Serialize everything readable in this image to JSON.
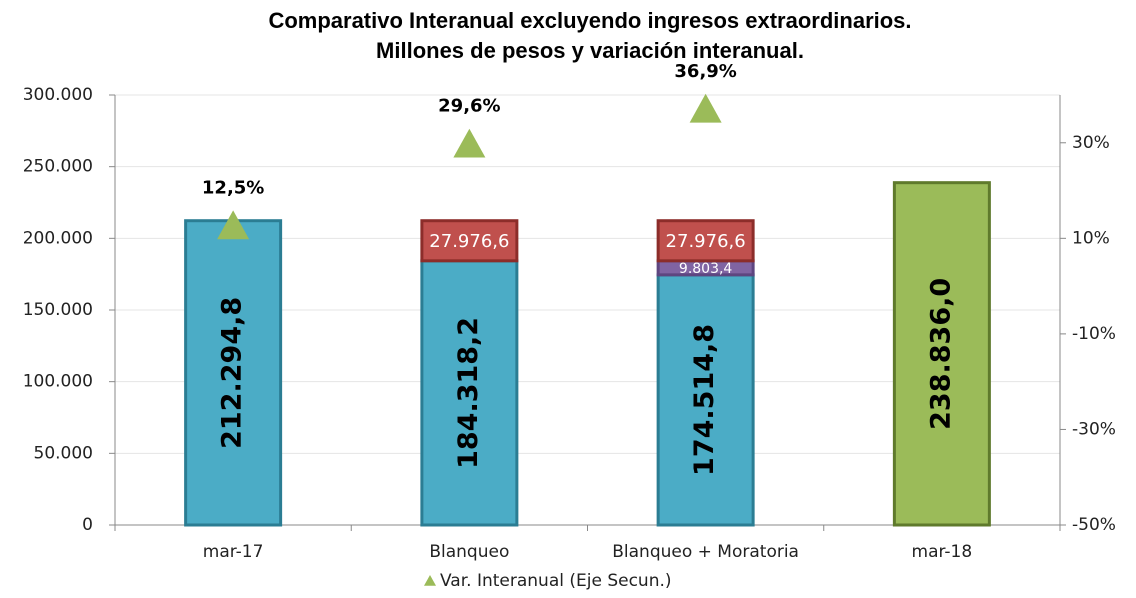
{
  "chart_data": {
    "type": "bar",
    "title": "Comparativo Interanual excluyendo ingresos extraordinarios.",
    "subtitle": "Millones de pesos y variación interanual.",
    "categories": [
      "mar-17",
      "Blanqueo",
      "Blanqueo + Moratoria",
      "mar-18"
    ],
    "series": [
      {
        "color": "#4bacc6",
        "edgecolor": "#2b7d93",
        "values": [
          212294.8,
          184318.2,
          174514.8,
          null
        ],
        "value_labels": [
          "212.294,8",
          "184.318,2",
          "174.514,8",
          null
        ]
      },
      {
        "color": "#8064a2",
        "edgecolor": "#5e4680",
        "values": [
          null,
          null,
          9803.4,
          null
        ],
        "value_labels": [
          null,
          null,
          "9.803,4",
          null
        ]
      },
      {
        "color": "#c0504d",
        "edgecolor": "#8c2d2a",
        "values": [
          null,
          27976.6,
          27976.6,
          null
        ],
        "value_labels": [
          null,
          "27.976,6",
          "27.976,6",
          null
        ]
      },
      {
        "color": "#9bbb59",
        "edgecolor": "#5f7a2c",
        "values": [
          null,
          null,
          null,
          238836.0
        ],
        "value_labels": [
          null,
          null,
          null,
          "238.836,0"
        ]
      },
      {
        "name": "Var. Interanual (Eje Secun.)",
        "type": "marker",
        "marker": "triangle",
        "axis": "y2",
        "color": "#9bbb59",
        "values": [
          12.5,
          29.6,
          36.9,
          null
        ],
        "value_labels": [
          "12,5%",
          "29,6%",
          "36,9%",
          null
        ]
      }
    ],
    "ylim": [
      0,
      300000
    ],
    "yticks": [
      0,
      {
        "value": 50000,
        "label": "50.000"
      },
      {
        "value": 100000,
        "label": "100.000"
      },
      {
        "value": 150000,
        "label": "150.000"
      },
      {
        "value": 200000,
        "label": "200.000"
      },
      {
        "value": 250000,
        "label": "250.000"
      },
      {
        "value": 300000,
        "label": "300.000"
      }
    ],
    "y2lim": [
      -50,
      40
    ],
    "y2ticks": [
      {
        "value": -50,
        "label": "-50%"
      },
      {
        "value": -30,
        "label": "-30%"
      },
      {
        "value": -10,
        "label": "-10%"
      },
      {
        "value": 10,
        "label": "10%"
      },
      {
        "value": 30,
        "label": "30%"
      }
    ],
    "grid": true,
    "legend": "bottom"
  }
}
